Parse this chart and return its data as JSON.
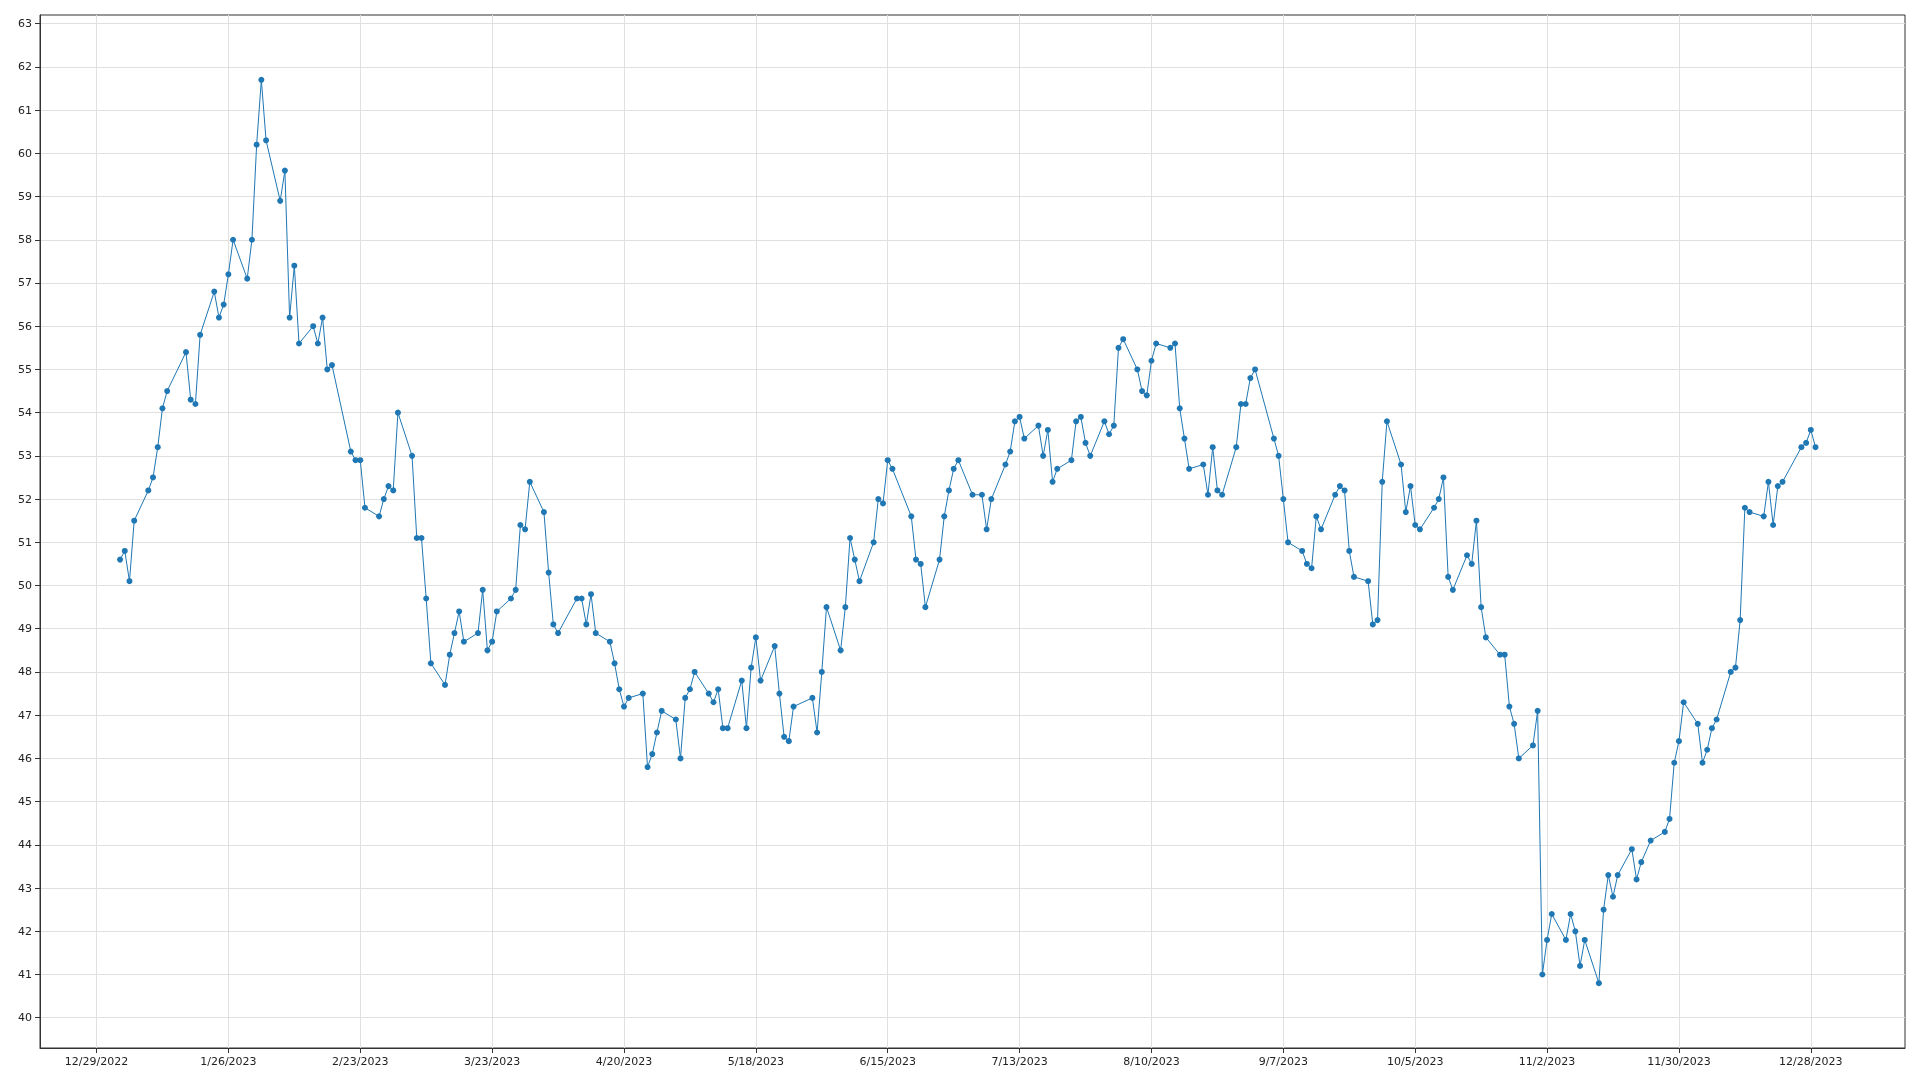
{
  "chart_data": {
    "type": "line",
    "x": [
      "2023-01-03",
      "2023-01-04",
      "2023-01-05",
      "2023-01-06",
      "2023-01-09",
      "2023-01-10",
      "2023-01-11",
      "2023-01-12",
      "2023-01-13",
      "2023-01-17",
      "2023-01-18",
      "2023-01-19",
      "2023-01-20",
      "2023-01-23",
      "2023-01-24",
      "2023-01-25",
      "2023-01-26",
      "2023-01-27",
      "2023-01-30",
      "2023-01-31",
      "2023-02-01",
      "2023-02-02",
      "2023-02-03",
      "2023-02-06",
      "2023-02-07",
      "2023-02-08",
      "2023-02-09",
      "2023-02-10",
      "2023-02-13",
      "2023-02-14",
      "2023-02-15",
      "2023-02-16",
      "2023-02-17",
      "2023-02-21",
      "2023-02-22",
      "2023-02-23",
      "2023-02-24",
      "2023-02-27",
      "2023-02-28",
      "2023-03-01",
      "2023-03-02",
      "2023-03-03",
      "2023-03-06",
      "2023-03-07",
      "2023-03-08",
      "2023-03-09",
      "2023-03-10",
      "2023-03-13",
      "2023-03-14",
      "2023-03-15",
      "2023-03-16",
      "2023-03-17",
      "2023-03-20",
      "2023-03-21",
      "2023-03-22",
      "2023-03-23",
      "2023-03-24",
      "2023-03-27",
      "2023-03-28",
      "2023-03-29",
      "2023-03-30",
      "2023-03-31",
      "2023-04-03",
      "2023-04-04",
      "2023-04-05",
      "2023-04-06",
      "2023-04-10",
      "2023-04-11",
      "2023-04-12",
      "2023-04-13",
      "2023-04-14",
      "2023-04-17",
      "2023-04-18",
      "2023-04-19",
      "2023-04-20",
      "2023-04-21",
      "2023-04-24",
      "2023-04-25",
      "2023-04-26",
      "2023-04-27",
      "2023-04-28",
      "2023-05-01",
      "2023-05-02",
      "2023-05-03",
      "2023-05-04",
      "2023-05-05",
      "2023-05-08",
      "2023-05-09",
      "2023-05-10",
      "2023-05-11",
      "2023-05-12",
      "2023-05-15",
      "2023-05-16",
      "2023-05-17",
      "2023-05-18",
      "2023-05-19",
      "2023-05-22",
      "2023-05-23",
      "2023-05-24",
      "2023-05-25",
      "2023-05-26",
      "2023-05-30",
      "2023-05-31",
      "2023-06-01",
      "2023-06-02",
      "2023-06-05",
      "2023-06-06",
      "2023-06-07",
      "2023-06-08",
      "2023-06-09",
      "2023-06-12",
      "2023-06-13",
      "2023-06-14",
      "2023-06-15",
      "2023-06-16",
      "2023-06-20",
      "2023-06-21",
      "2023-06-22",
      "2023-06-23",
      "2023-06-26",
      "2023-06-27",
      "2023-06-28",
      "2023-06-29",
      "2023-06-30",
      "2023-07-03",
      "2023-07-05",
      "2023-07-06",
      "2023-07-07",
      "2023-07-10",
      "2023-07-11",
      "2023-07-12",
      "2023-07-13",
      "2023-07-14",
      "2023-07-17",
      "2023-07-18",
      "2023-07-19",
      "2023-07-20",
      "2023-07-21",
      "2023-07-24",
      "2023-07-25",
      "2023-07-26",
      "2023-07-27",
      "2023-07-28",
      "2023-07-31",
      "2023-08-01",
      "2023-08-02",
      "2023-08-03",
      "2023-08-04",
      "2023-08-07",
      "2023-08-08",
      "2023-08-09",
      "2023-08-10",
      "2023-08-11",
      "2023-08-14",
      "2023-08-15",
      "2023-08-16",
      "2023-08-17",
      "2023-08-18",
      "2023-08-21",
      "2023-08-22",
      "2023-08-23",
      "2023-08-24",
      "2023-08-25",
      "2023-08-28",
      "2023-08-29",
      "2023-08-30",
      "2023-08-31",
      "2023-09-01",
      "2023-09-05",
      "2023-09-06",
      "2023-09-07",
      "2023-09-08",
      "2023-09-11",
      "2023-09-12",
      "2023-09-13",
      "2023-09-14",
      "2023-09-15",
      "2023-09-18",
      "2023-09-19",
      "2023-09-20",
      "2023-09-21",
      "2023-09-22",
      "2023-09-25",
      "2023-09-26",
      "2023-09-27",
      "2023-09-28",
      "2023-09-29",
      "2023-10-02",
      "2023-10-03",
      "2023-10-04",
      "2023-10-05",
      "2023-10-06",
      "2023-10-09",
      "2023-10-10",
      "2023-10-11",
      "2023-10-12",
      "2023-10-13",
      "2023-10-16",
      "2023-10-17",
      "2023-10-18",
      "2023-10-19",
      "2023-10-20",
      "2023-10-23",
      "2023-10-24",
      "2023-10-25",
      "2023-10-26",
      "2023-10-27",
      "2023-10-30",
      "2023-10-31",
      "2023-11-01",
      "2023-11-02",
      "2023-11-03",
      "2023-11-06",
      "2023-11-07",
      "2023-11-08",
      "2023-11-09",
      "2023-11-10",
      "2023-11-13",
      "2023-11-14",
      "2023-11-15",
      "2023-11-16",
      "2023-11-17",
      "2023-11-20",
      "2023-11-21",
      "2023-11-22",
      "2023-11-24",
      "2023-11-27",
      "2023-11-28",
      "2023-11-29",
      "2023-11-30",
      "2023-12-01",
      "2023-12-04",
      "2023-12-05",
      "2023-12-06",
      "2023-12-07",
      "2023-12-08",
      "2023-12-11",
      "2023-12-12",
      "2023-12-13",
      "2023-12-14",
      "2023-12-15",
      "2023-12-18",
      "2023-12-19",
      "2023-12-20",
      "2023-12-21",
      "2023-12-22",
      "2023-12-26",
      "2023-12-27",
      "2023-12-28",
      "2023-12-29"
    ],
    "series": [
      {
        "color": "#1f77b4",
        "values": [
          50.6,
          50.8,
          50.1,
          51.5,
          52.2,
          52.5,
          53.2,
          54.1,
          54.5,
          55.4,
          54.3,
          54.2,
          55.8,
          56.8,
          56.2,
          56.5,
          57.2,
          58.0,
          57.1,
          58.0,
          60.2,
          61.7,
          60.3,
          58.9,
          59.6,
          56.2,
          57.4,
          55.6,
          56.0,
          55.6,
          56.2,
          55.0,
          55.1,
          53.1,
          52.9,
          52.9,
          51.8,
          51.6,
          52.0,
          52.3,
          52.2,
          54.0,
          53.0,
          51.1,
          51.1,
          49.7,
          48.2,
          47.7,
          48.4,
          48.9,
          49.4,
          48.7,
          48.9,
          49.9,
          48.5,
          48.7,
          49.4,
          49.7,
          49.9,
          51.4,
          51.3,
          52.4,
          51.7,
          50.3,
          49.1,
          48.9,
          49.7,
          49.7,
          49.1,
          49.8,
          48.9,
          48.7,
          48.2,
          47.6,
          47.2,
          47.4,
          47.5,
          45.8,
          46.1,
          46.6,
          47.1,
          46.9,
          46.0,
          47.4,
          47.6,
          48.0,
          47.5,
          47.3,
          47.6,
          46.7,
          46.7,
          47.8,
          46.7,
          48.1,
          48.8,
          47.8,
          48.6,
          47.5,
          46.5,
          46.4,
          47.2,
          47.4,
          46.6,
          48.0,
          49.5,
          48.5,
          49.5,
          51.1,
          50.6,
          50.1,
          51.0,
          52.0,
          51.9,
          52.9,
          52.7,
          51.6,
          50.6,
          50.5,
          49.5,
          50.6,
          51.6,
          52.2,
          52.7,
          52.9,
          52.1,
          52.1,
          51.3,
          52.0,
          52.8,
          53.1,
          53.8,
          53.9,
          53.4,
          53.7,
          53.0,
          53.6,
          52.4,
          52.7,
          52.9,
          53.8,
          53.9,
          53.3,
          53.0,
          53.8,
          53.5,
          53.7,
          55.5,
          55.7,
          55.0,
          54.5,
          54.4,
          55.2,
          55.6,
          55.5,
          55.6,
          54.1,
          53.4,
          52.7,
          52.8,
          52.1,
          53.2,
          52.2,
          52.1,
          53.2,
          54.2,
          54.2,
          54.8,
          55.0,
          53.4,
          53.0,
          52.0,
          51.0,
          50.8,
          50.5,
          50.4,
          51.6,
          51.3,
          52.1,
          52.3,
          52.2,
          50.8,
          50.2,
          50.1,
          49.1,
          49.2,
          52.4,
          53.8,
          52.8,
          51.7,
          52.3,
          51.4,
          51.3,
          51.8,
          52.0,
          52.5,
          50.2,
          49.9,
          50.7,
          50.5,
          51.5,
          49.5,
          48.8,
          48.4,
          48.4,
          47.2,
          46.8,
          46.0,
          46.3,
          47.1,
          41.0,
          41.8,
          42.4,
          41.8,
          42.4,
          42.0,
          41.2,
          41.8,
          40.8,
          42.5,
          43.3,
          42.8,
          43.3,
          43.9,
          43.2,
          43.6,
          44.1,
          44.3,
          44.6,
          45.9,
          46.4,
          47.3,
          46.8,
          45.9,
          46.2,
          46.7,
          46.9,
          48.0,
          48.1,
          49.2,
          51.8,
          51.7,
          51.6,
          52.4,
          51.4,
          52.3,
          52.4,
          53.2,
          53.3,
          53.6,
          53.2
        ]
      }
    ],
    "xlim": [
      "2022-12-17",
      "2024-01-17"
    ],
    "xticks": [
      {
        "value": "2022-12-29",
        "label": "12/29/2022"
      },
      {
        "value": "2023-01-26",
        "label": "1/26/2023"
      },
      {
        "value": "2023-02-23",
        "label": "2/23/2023"
      },
      {
        "value": "2023-03-23",
        "label": "3/23/2023"
      },
      {
        "value": "2023-04-20",
        "label": "4/20/2023"
      },
      {
        "value": "2023-05-18",
        "label": "5/18/2023"
      },
      {
        "value": "2023-06-15",
        "label": "6/15/2023"
      },
      {
        "value": "2023-07-13",
        "label": "7/13/2023"
      },
      {
        "value": "2023-08-10",
        "label": "8/10/2023"
      },
      {
        "value": "2023-09-07",
        "label": "9/7/2023"
      },
      {
        "value": "2023-10-05",
        "label": "10/5/2023"
      },
      {
        "value": "2023-11-02",
        "label": "11/2/2023"
      },
      {
        "value": "2023-11-30",
        "label": "11/30/2023"
      },
      {
        "value": "2023-12-28",
        "label": "12/28/2023"
      }
    ],
    "ylim": [
      39.3,
      63.2
    ],
    "yticks": [
      40,
      41,
      42,
      43,
      44,
      45,
      46,
      47,
      48,
      49,
      50,
      51,
      52,
      53,
      54,
      55,
      56,
      57,
      58,
      59,
      60,
      61,
      62,
      63
    ],
    "grid": true,
    "marker": "circle",
    "line_style": "solid"
  }
}
